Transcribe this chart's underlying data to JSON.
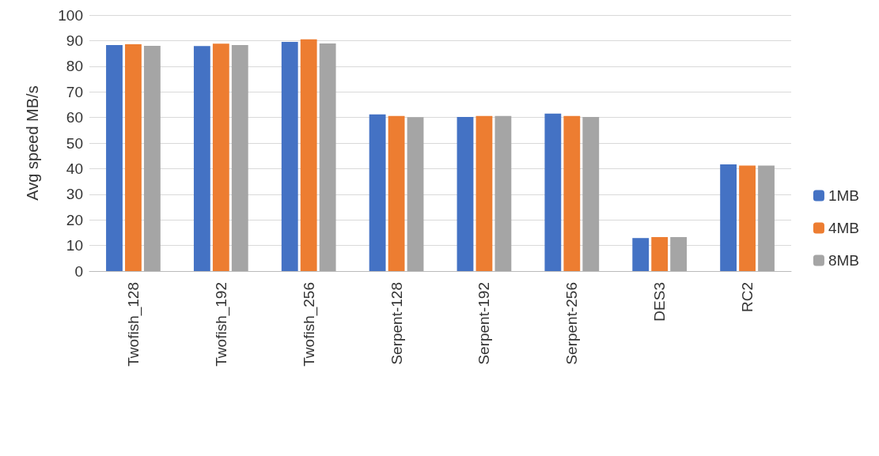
{
  "chart_data": {
    "type": "bar",
    "ylabel": "Avg speed MB/s",
    "categories": [
      "Twofish_128",
      "Twofish_192",
      "Twofish_256",
      "Serpent-128",
      "Serpent-192",
      "Serpent-256",
      "DES3",
      "RC2"
    ],
    "series": [
      {
        "name": "1MB",
        "color": "#4472c4",
        "values": [
          88.3,
          87.9,
          89.5,
          61.2,
          60.2,
          61.5,
          12.9,
          41.7
        ]
      },
      {
        "name": "4MB",
        "color": "#ed7d31",
        "values": [
          88.6,
          88.8,
          90.5,
          60.6,
          60.6,
          60.6,
          13.3,
          41.2
        ]
      },
      {
        "name": "8MB",
        "color": "#a5a5a5",
        "values": [
          88.0,
          88.3,
          88.9,
          60.1,
          60.6,
          60.2,
          13.3,
          41.2
        ]
      }
    ],
    "ylim": [
      0,
      100
    ],
    "yticks": [
      0,
      10,
      20,
      30,
      40,
      50,
      60,
      70,
      80,
      90,
      100
    ],
    "grid": "y",
    "legend": "right"
  }
}
